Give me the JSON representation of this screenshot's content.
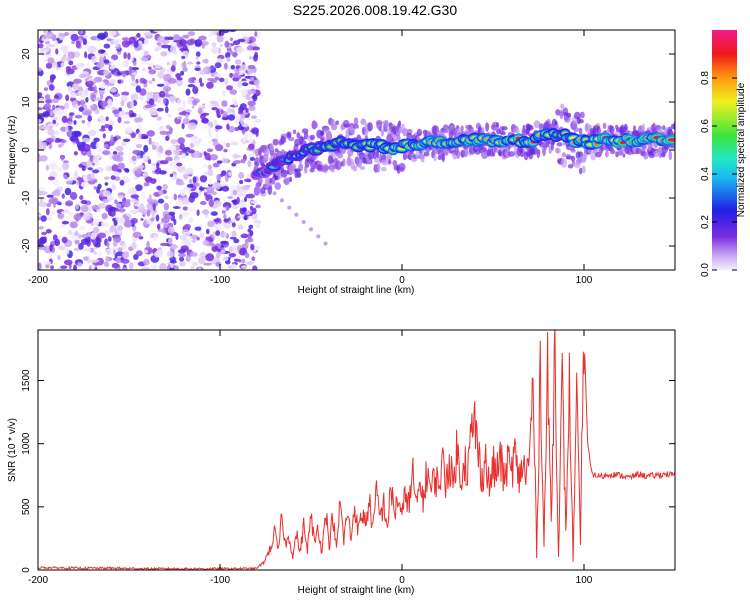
{
  "title": "S225.2026.008.19.42.G30",
  "chart_data": [
    {
      "type": "heatmap",
      "name": "spectrogram",
      "xlabel": "Height of straight line (km)",
      "ylabel": "Frequency (Hz)",
      "xlim": [
        -200,
        150
      ],
      "ylim": [
        -25,
        25
      ],
      "xticks": [
        -200,
        -100,
        0,
        100
      ],
      "yticks": [
        -20,
        -10,
        0,
        10,
        20
      ],
      "colorbar": {
        "label": "Normalized spectral amplitude",
        "range": [
          0,
          1
        ],
        "ticks": [
          "0.0",
          "0.2",
          "0.4",
          "0.6",
          "0.8"
        ],
        "tick_values": [
          0,
          0.2,
          0.4,
          0.6,
          0.8
        ]
      },
      "noise_region": {
        "x": [
          -200,
          -79
        ]
      },
      "ridge": {
        "x": [
          -80,
          -72,
          -65,
          -58,
          -50,
          -42,
          -35,
          -25,
          -15,
          -5,
          5,
          15,
          25,
          40,
          55,
          70,
          80,
          90,
          95,
          100,
          110,
          120,
          130,
          150
        ],
        "freq": [
          -5,
          -4,
          -2,
          -1,
          0,
          1,
          1.5,
          1,
          1,
          0.5,
          1,
          1.5,
          1.5,
          2,
          2,
          2,
          3,
          3.5,
          2,
          1.5,
          2,
          2,
          2,
          2
        ],
        "peak_amplitude": [
          0.3,
          0.4,
          0.45,
          0.5,
          0.55,
          0.6,
          0.65,
          0.7,
          0.75,
          0.8,
          0.78,
          0.8,
          0.82,
          0.85,
          0.85,
          0.85,
          0.75,
          0.7,
          0.8,
          0.85,
          0.88,
          0.9,
          0.9,
          0.9
        ]
      }
    },
    {
      "type": "line",
      "name": "snr",
      "xlabel": "Height of straight line (km)",
      "ylabel": "SNR (10 * v/v)",
      "xlim": [
        -200,
        150
      ],
      "ylim": [
        0,
        1900
      ],
      "xticks": [
        -200,
        -100,
        0,
        100
      ],
      "yticks": [
        0,
        500,
        1000,
        1500
      ],
      "color": "#e8302e",
      "series": [
        {
          "name": "SNR",
          "x": [
            -200,
            -180,
            -160,
            -140,
            -120,
            -100,
            -80,
            -76,
            -72,
            -70,
            -68,
            -66,
            -64,
            -62,
            -60,
            -58,
            -56,
            -54,
            -52,
            -50,
            -48,
            -46,
            -44,
            -42,
            -40,
            -38,
            -36,
            -34,
            -32,
            -30,
            -28,
            -26,
            -24,
            -22,
            -20,
            -18,
            -16,
            -14,
            -12,
            -10,
            -8,
            -6,
            -4,
            -2,
            0,
            2,
            4,
            6,
            8,
            10,
            12,
            14,
            16,
            18,
            20,
            22,
            24,
            26,
            28,
            30,
            32,
            34,
            36,
            38,
            40,
            42,
            44,
            46,
            48,
            50,
            52,
            54,
            56,
            58,
            60,
            62,
            64,
            66,
            68,
            70,
            72,
            74,
            76,
            78,
            80,
            82,
            84,
            86,
            88,
            90,
            92,
            94,
            96,
            98,
            100,
            102,
            104,
            106,
            110,
            115,
            120,
            125,
            130,
            135,
            140,
            145,
            150
          ],
          "values": [
            20,
            15,
            15,
            10,
            10,
            10,
            12,
            60,
            180,
            300,
            150,
            420,
            200,
            260,
            110,
            290,
            140,
            350,
            160,
            420,
            210,
            360,
            120,
            520,
            180,
            440,
            150,
            550,
            230,
            460,
            250,
            520,
            300,
            450,
            380,
            540,
            330,
            600,
            420,
            520,
            350,
            640,
            450,
            580,
            400,
            630,
            520,
            760,
            480,
            700,
            550,
            820,
            600,
            760,
            650,
            860,
            700,
            880,
            650,
            960,
            720,
            900,
            780,
            1050,
            1180,
            900,
            750,
            880,
            640,
            820,
            760,
            900,
            700,
            860,
            780,
            920,
            700,
            840,
            760,
            860,
            1500,
            120,
            1650,
            200,
            1550,
            400,
            1820,
            100,
            1500,
            300,
            1450,
            80,
            1300,
            250,
            1900,
            1000,
            780,
            750,
            740,
            760,
            750,
            730,
            760,
            740,
            750,
            760,
            750
          ]
        }
      ]
    }
  ]
}
